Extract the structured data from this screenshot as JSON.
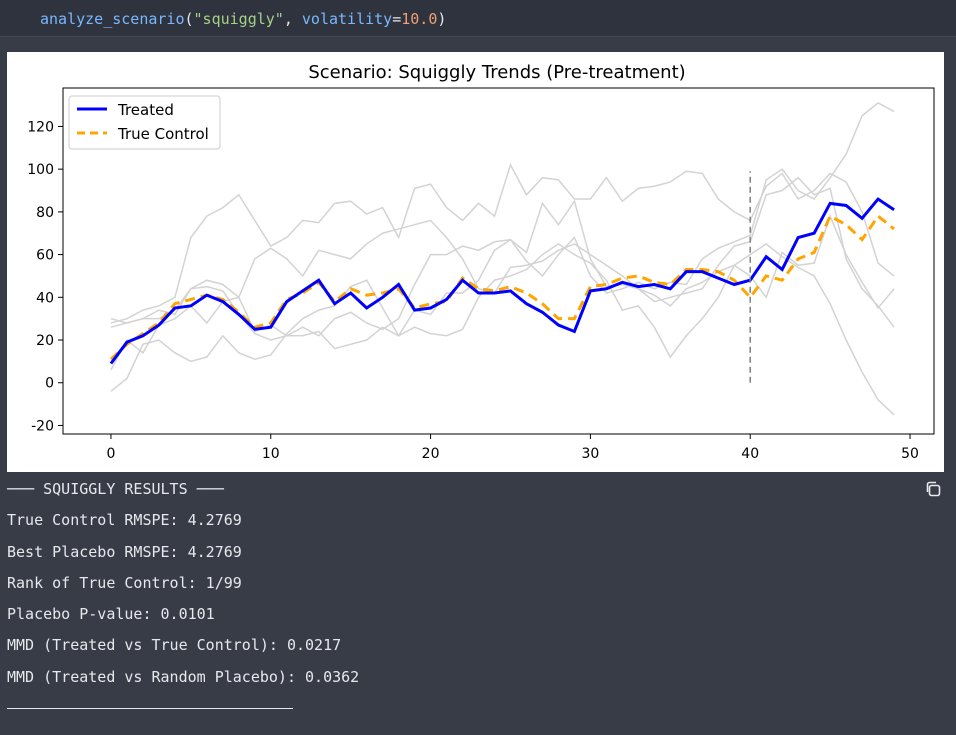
{
  "code": {
    "fn": "analyze_scenario",
    "open": "(",
    "arg_str": "\"squiggly\"",
    "comma": ", ",
    "kw": "volatility",
    "eq": "=",
    "num": "10.0",
    "close": ")"
  },
  "output": {
    "header": "─── SQUIGGLY RESULTS ───",
    "lines": [
      "True Control RMSPE: 4.2769",
      "Best Placebo RMSPE: 4.2769",
      "Rank of True Control: 1/99",
      "Placebo P-value: 0.0101",
      "MMD (Treated vs True Control): 0.0217",
      "MMD (Treated vs Random Placebo): 0.0362"
    ],
    "copy_icon": "copy-icon"
  },
  "colors": {
    "treated": "#0000ff",
    "control": "#ffa500",
    "placebo": "#d3d3d3",
    "vline": "#808080"
  },
  "chart_data": {
    "type": "line",
    "title": "Scenario: Squiggly Trends (Pre-treatment)",
    "xlabel": "",
    "ylabel": "",
    "xlim": [
      -3,
      51.5
    ],
    "ylim": [
      -24,
      138
    ],
    "xticks": [
      0,
      10,
      20,
      30,
      40,
      50
    ],
    "yticks": [
      -20,
      0,
      20,
      40,
      60,
      80,
      100,
      120
    ],
    "treatment_time": 40,
    "vline_range": [
      0,
      99
    ],
    "legend": {
      "position": "top-left",
      "entries": [
        "Treated",
        "True Control"
      ]
    },
    "x": [
      0,
      1,
      2,
      3,
      4,
      5,
      6,
      7,
      8,
      9,
      10,
      11,
      12,
      13,
      14,
      15,
      16,
      17,
      18,
      19,
      20,
      21,
      22,
      23,
      24,
      25,
      26,
      27,
      28,
      29,
      30,
      31,
      32,
      33,
      34,
      35,
      36,
      37,
      38,
      39,
      40,
      41,
      42,
      43,
      44,
      45,
      46,
      47,
      48,
      49
    ],
    "series": [
      {
        "name": "Treated",
        "values": [
          9,
          19,
          22,
          27,
          35,
          36,
          41,
          38,
          32,
          25,
          26,
          38,
          43,
          48,
          37,
          42,
          35,
          40,
          46,
          34,
          35,
          39,
          48,
          42,
          42,
          43,
          37,
          33,
          27,
          24,
          43,
          44,
          47,
          45,
          46,
          44,
          52,
          52,
          49,
          46,
          48,
          59,
          53,
          68,
          70,
          84,
          83,
          77,
          86,
          81
        ]
      },
      {
        "name": "True Control",
        "values": [
          11,
          18,
          23,
          28,
          37,
          39,
          41,
          39,
          33,
          26,
          28,
          39,
          42,
          47,
          38,
          44,
          41,
          42,
          44,
          35,
          37,
          38,
          49,
          44,
          43,
          45,
          42,
          37,
          30,
          30,
          45,
          46,
          49,
          50,
          47,
          46,
          53,
          53,
          52,
          48,
          40,
          50,
          48,
          58,
          61,
          78,
          74,
          67,
          78,
          72
        ]
      },
      {
        "name": "",
        "values": [
          -4,
          2,
          18,
          20,
          14,
          10,
          12,
          22,
          14,
          11,
          13,
          23,
          30,
          34,
          36,
          45,
          48,
          35,
          22,
          34,
          32,
          42,
          42,
          48,
          62,
          67,
          61,
          84,
          74,
          85,
          58,
          45,
          46,
          44,
          41,
          36,
          44,
          47,
          52,
          55,
          50,
          40,
          61,
          55,
          56,
          78,
          60,
          47,
          35,
          44
        ]
      },
      {
        "name": "",
        "values": [
          6,
          20,
          14,
          27,
          30,
          36,
          28,
          38,
          40,
          58,
          63,
          58,
          50,
          62,
          60,
          58,
          65,
          70,
          72,
          74,
          76,
          68,
          58,
          44,
          42,
          54,
          55,
          57,
          62,
          65,
          60,
          55,
          50,
          44,
          38,
          40,
          42,
          44,
          55,
          64,
          66,
          88,
          90,
          96,
          88,
          91,
          58,
          44,
          36,
          26
        ]
      },
      {
        "name": "",
        "values": [
          30,
          28,
          30,
          34,
          32,
          44,
          45,
          43,
          32,
          23,
          20,
          22,
          26,
          22,
          30,
          33,
          28,
          25,
          30,
          46,
          60,
          60,
          64,
          62,
          66,
          67,
          57,
          50,
          60,
          68,
          50,
          42,
          44,
          47,
          44,
          47,
          46,
          58,
          63,
          66,
          69,
          95,
          100,
          90,
          86,
          96,
          107,
          125,
          131,
          127
        ]
      },
      {
        "name": "",
        "values": [
          26,
          28,
          30,
          30,
          34,
          44,
          48,
          46,
          40,
          24,
          27,
          22,
          22,
          24,
          16,
          18,
          20,
          26,
          22,
          26,
          23,
          22,
          25,
          40,
          48,
          50,
          53,
          60,
          65,
          60,
          56,
          48,
          34,
          36,
          26,
          12,
          22,
          30,
          40,
          55,
          60,
          65,
          59,
          54,
          50,
          37,
          20,
          5,
          -8,
          -15
        ]
      },
      {
        "name": "",
        "values": [
          28,
          30,
          34,
          36,
          40,
          68,
          78,
          82,
          88,
          76,
          64,
          68,
          76,
          75,
          84,
          85,
          79,
          82,
          68,
          91,
          93,
          82,
          76,
          84,
          78,
          102,
          88,
          96,
          95,
          86,
          86,
          96,
          85,
          91,
          92,
          94,
          99,
          98,
          86,
          80,
          76,
          92,
          98,
          86,
          90,
          98,
          94,
          80,
          56,
          50
        ]
      }
    ]
  }
}
